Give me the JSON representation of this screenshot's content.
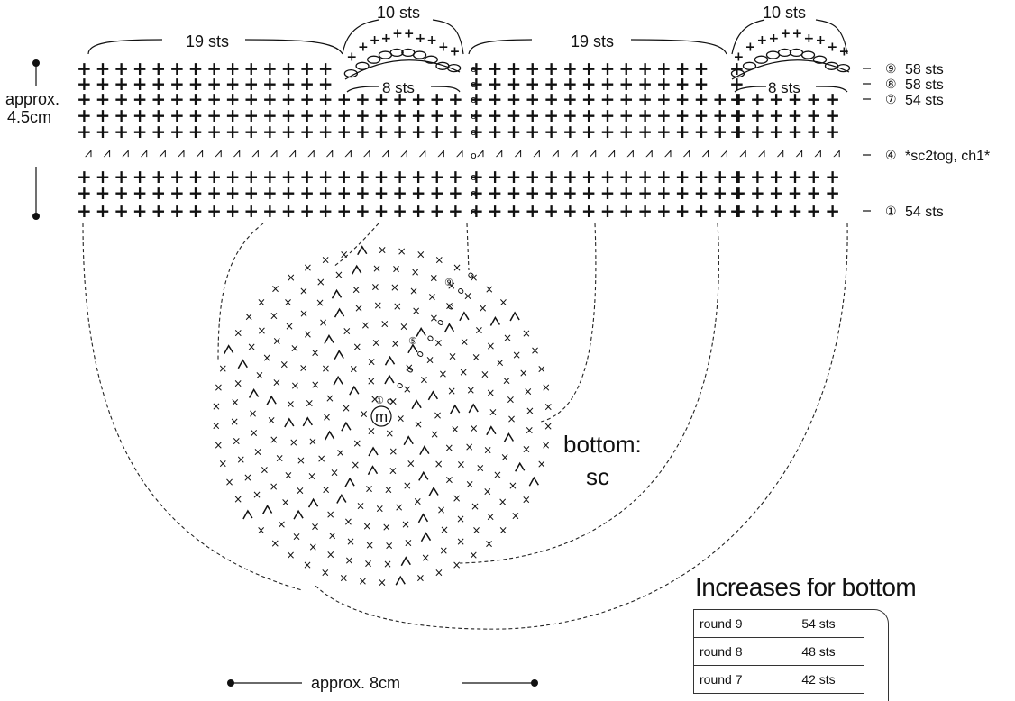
{
  "top_labels": {
    "left_19": "19 sts",
    "left_10": "10 sts",
    "right_19": "19 sts",
    "right_10": "10 sts",
    "left_8": "8 sts",
    "right_8": "8 sts"
  },
  "height_label": [
    "approx.",
    "4.5cm"
  ],
  "row_labels": [
    {
      "num": "⑨",
      "text": "58 sts"
    },
    {
      "num": "⑧",
      "text": "58 sts"
    },
    {
      "num": "⑦",
      "text": "54 sts"
    },
    {
      "num": "④",
      "text": "*sc2tog, ch1*"
    },
    {
      "num": "①",
      "text": "54 sts"
    }
  ],
  "bottom_label": [
    "bottom:",
    "sc"
  ],
  "width_label": "approx. 8cm",
  "center_marker": "m",
  "round_markers": [
    "①",
    "⑤",
    "⑨"
  ],
  "symbols": {
    "sc": "+",
    "ch": "ο",
    "sc2tog": "ﾍ"
  },
  "table": {
    "title": "Increases for bottom",
    "rows": [
      {
        "round": "round 9",
        "sts": "54 sts"
      },
      {
        "round": "round 8",
        "sts": "48 sts"
      },
      {
        "round": "round 7",
        "sts": "42 sts"
      }
    ]
  }
}
